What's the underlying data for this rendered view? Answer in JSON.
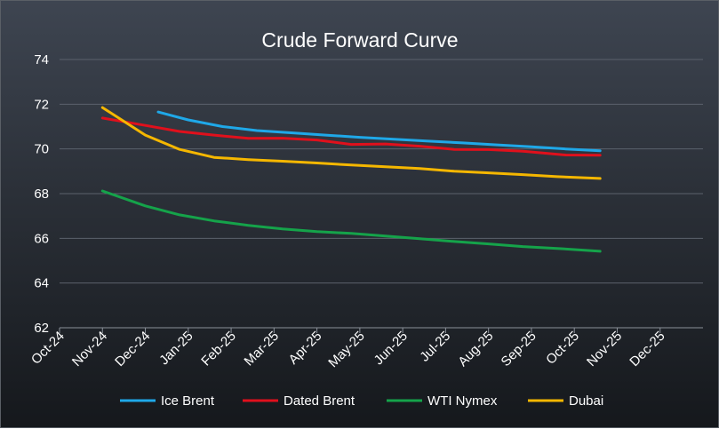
{
  "chart_data": {
    "type": "line",
    "title": "Crude Forward Curve",
    "xlabel": "",
    "ylabel": "",
    "ylim": [
      62,
      74
    ],
    "y_ticks": [
      62,
      64,
      66,
      68,
      70,
      72,
      74
    ],
    "categories": [
      "Oct-24",
      "Nov-24",
      "Dec-24",
      "Jan-25",
      "Feb-25",
      "Mar-25",
      "Apr-25",
      "May-25",
      "Jun-25",
      "Jul-25",
      "Aug-25",
      "Sep-25",
      "Oct-25",
      "Nov-25",
      "Dec-25"
    ],
    "grid": "horizontal",
    "legend_position": "bottom",
    "series": [
      {
        "name": "Ice Brent",
        "color": "#1fa8e8",
        "points": [
          [
            2.3,
            71.65
          ],
          [
            3.0,
            71.3
          ],
          [
            3.8,
            71.0
          ],
          [
            4.6,
            70.82
          ],
          [
            5.4,
            70.72
          ],
          [
            6.2,
            70.62
          ],
          [
            7.0,
            70.52
          ],
          [
            7.8,
            70.43
          ],
          [
            8.6,
            70.35
          ],
          [
            9.4,
            70.27
          ],
          [
            10.2,
            70.18
          ],
          [
            11.0,
            70.1
          ],
          [
            11.8,
            70.0
          ],
          [
            12.6,
            69.92
          ]
        ]
      },
      {
        "name": "Dated Brent",
        "color": "#e0101c",
        "points": [
          [
            1.0,
            71.38
          ],
          [
            2.0,
            71.05
          ],
          [
            2.8,
            70.78
          ],
          [
            3.6,
            70.62
          ],
          [
            4.4,
            70.47
          ],
          [
            5.2,
            70.48
          ],
          [
            6.0,
            70.4
          ],
          [
            6.8,
            70.2
          ],
          [
            7.6,
            70.22
          ],
          [
            8.4,
            70.12
          ],
          [
            9.2,
            69.98
          ],
          [
            10.0,
            69.97
          ],
          [
            10.8,
            69.9
          ],
          [
            11.8,
            69.73
          ],
          [
            12.6,
            69.72
          ]
        ]
      },
      {
        "name": "WTI Nymex",
        "color": "#15a34a",
        "points": [
          [
            1.0,
            68.12
          ],
          [
            2.0,
            67.45
          ],
          [
            2.8,
            67.05
          ],
          [
            3.6,
            66.78
          ],
          [
            4.4,
            66.58
          ],
          [
            5.2,
            66.42
          ],
          [
            6.0,
            66.3
          ],
          [
            6.8,
            66.22
          ],
          [
            7.6,
            66.1
          ],
          [
            8.4,
            65.98
          ],
          [
            9.2,
            65.86
          ],
          [
            10.0,
            65.75
          ],
          [
            10.8,
            65.63
          ],
          [
            11.6,
            65.55
          ],
          [
            12.6,
            65.42
          ]
        ]
      },
      {
        "name": "Dubai",
        "color": "#f5b700",
        "points": [
          [
            1.0,
            71.85
          ],
          [
            2.0,
            70.62
          ],
          [
            2.8,
            69.98
          ],
          [
            3.6,
            69.62
          ],
          [
            4.4,
            69.52
          ],
          [
            5.2,
            69.45
          ],
          [
            6.0,
            69.37
          ],
          [
            6.8,
            69.28
          ],
          [
            7.6,
            69.2
          ],
          [
            8.4,
            69.12
          ],
          [
            9.2,
            69.0
          ],
          [
            10.0,
            68.93
          ],
          [
            10.8,
            68.85
          ],
          [
            11.6,
            68.76
          ],
          [
            12.6,
            68.68
          ]
        ]
      }
    ]
  }
}
